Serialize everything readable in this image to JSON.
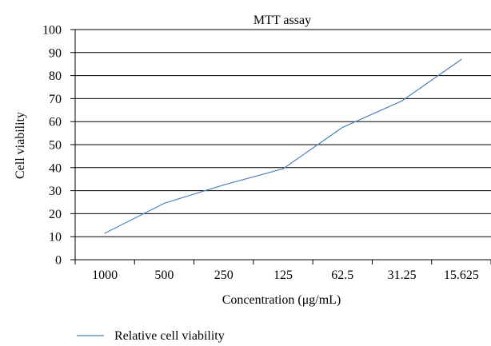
{
  "chart_data": {
    "type": "line",
    "title": "MTT assay",
    "xlabel": "Concentration (μg/mL)",
    "ylabel": "Cell viability",
    "categories": [
      "1000",
      "500",
      "250",
      "125",
      "62.5",
      "31.25",
      "15.625"
    ],
    "series": [
      {
        "name": "Relative cell viability",
        "values": [
          11.5,
          24.5,
          32.5,
          39.5,
          57.5,
          69,
          87
        ],
        "color": "#4f81bd"
      }
    ],
    "ylim": [
      0,
      100
    ],
    "yticks": [
      "0",
      "10",
      "20",
      "30",
      "40",
      "50",
      "60",
      "70",
      "80",
      "90",
      "100"
    ],
    "grid": true,
    "gridlines": "horizontal",
    "legend_position": "bottom-left"
  }
}
